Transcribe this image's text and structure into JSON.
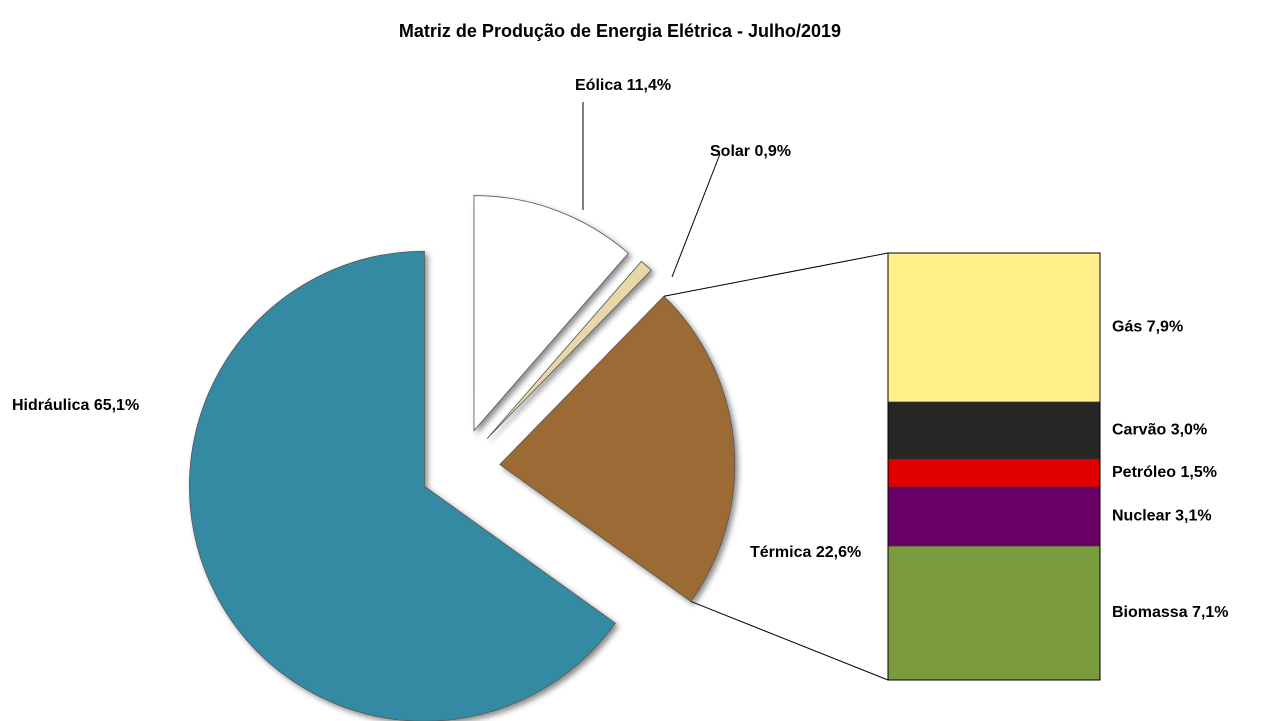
{
  "chart_data": {
    "type": "pie-of-bar",
    "title": "Matriz de Produção de Energia Elétrica - Julho/2019",
    "categories": [
      "Eólica",
      "Solar",
      "Térmica",
      "Hidráulica"
    ],
    "values": [
      11.4,
      0.9,
      22.6,
      65.1
    ],
    "value_labels": [
      "11,4%",
      "0,9%",
      "22,6%",
      "65,1%"
    ],
    "colors": [
      "#ffffff",
      "#e8d8a8",
      "#9c6a35",
      "#348aa3"
    ],
    "breakdown": {
      "categories": [
        "Gás",
        "Carvão",
        "Petróleo",
        "Nuclear",
        "Biomassa"
      ],
      "values": [
        7.9,
        3.0,
        1.5,
        3.1,
        7.1
      ],
      "value_labels": [
        "7,9%",
        "3,0%",
        "1,5%",
        "3,1%",
        "7,1%"
      ],
      "colors": [
        "#fff08a",
        "#262626",
        "#e00000",
        "#6a0066",
        "#7a9a3e"
      ]
    }
  }
}
